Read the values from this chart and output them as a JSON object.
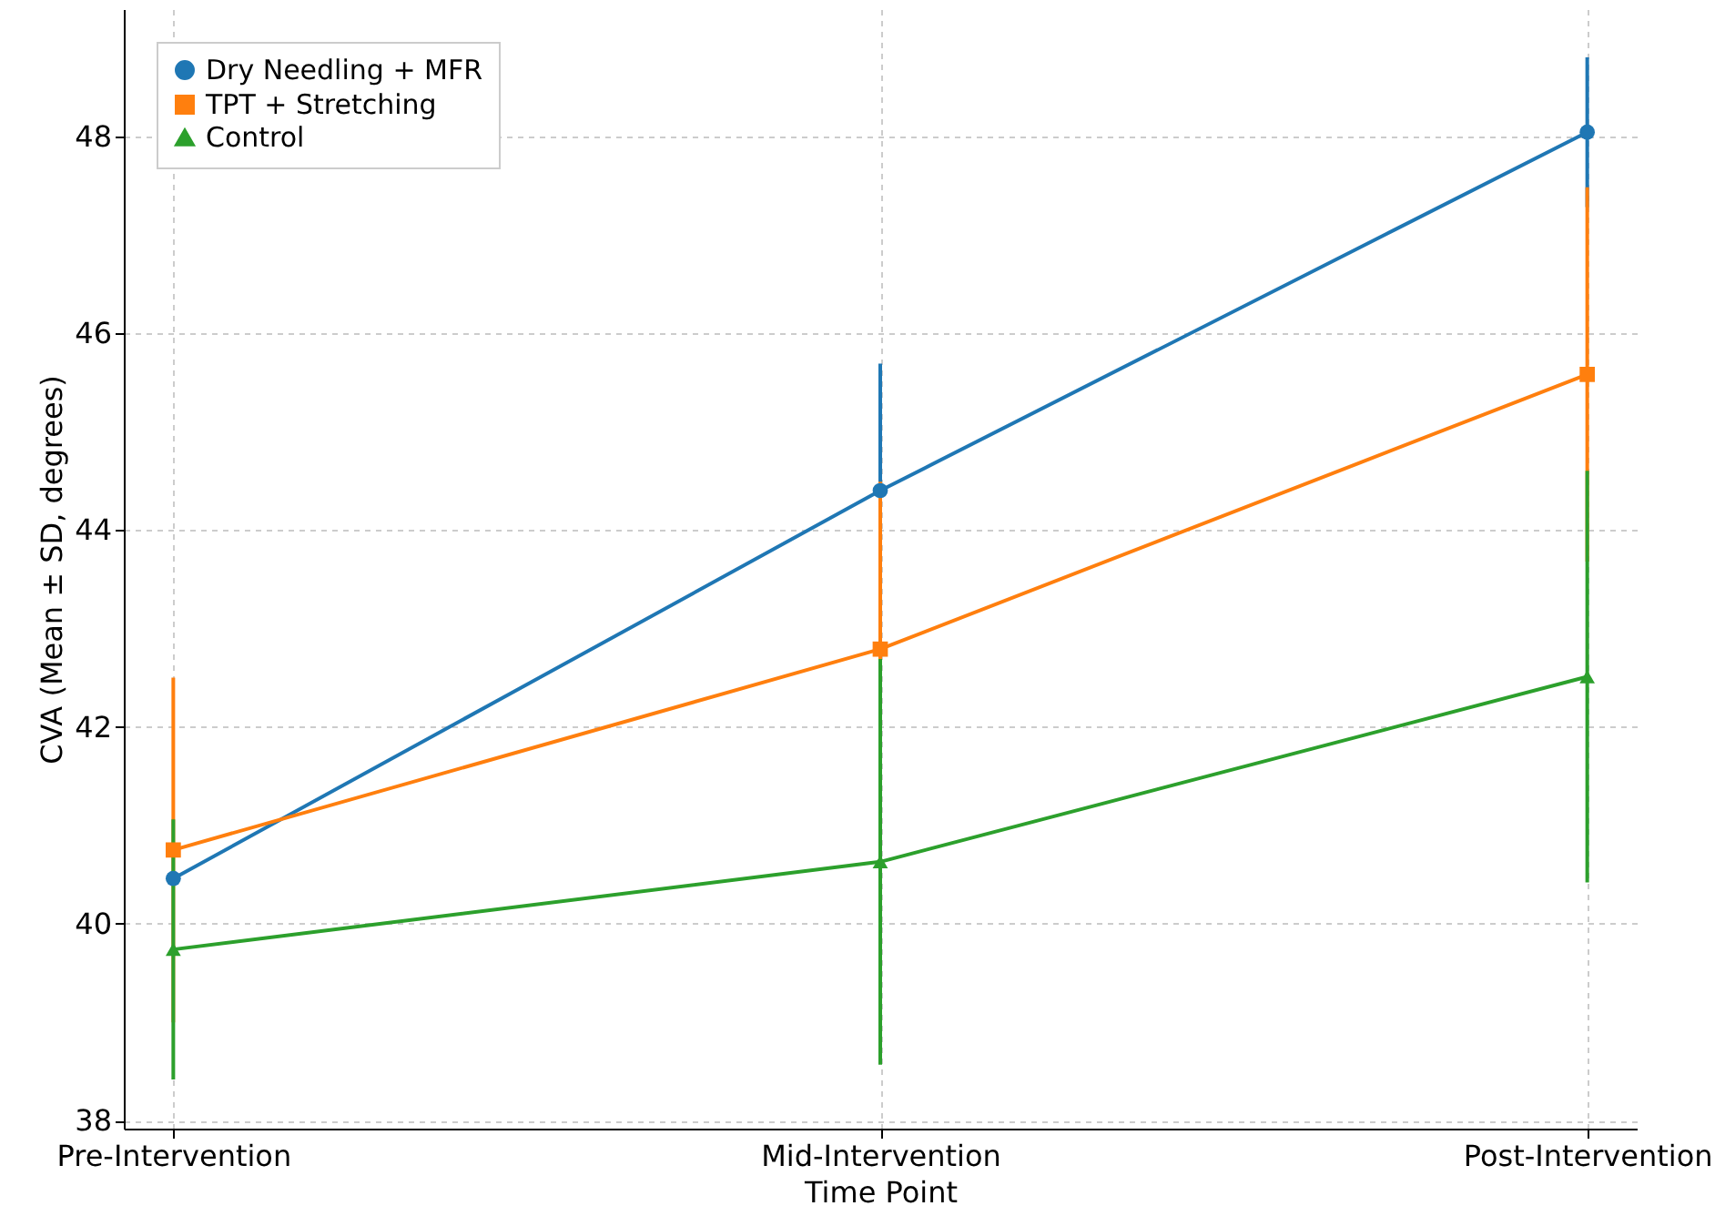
{
  "chart_data": {
    "type": "line",
    "xlabel": "Time Point",
    "ylabel": "CVA (Mean ± SD, degrees)",
    "categories": [
      "Pre-Intervention",
      "Mid-Intervention",
      "Post-Intervention"
    ],
    "series": [
      {
        "name": "Dry Needling + MFR",
        "color": "#1f77b4",
        "marker": "circle",
        "values": [
          40.46,
          44.4,
          48.04
        ],
        "errors": [
          null,
          1.29,
          0.76
        ]
      },
      {
        "name": "TPT + Stretching",
        "color": "#ff7f0e",
        "marker": "square",
        "values": [
          40.75,
          42.79,
          45.58
        ],
        "errors": [
          1.75,
          1.7,
          1.9
        ]
      },
      {
        "name": "Control",
        "color": "#2ca02c",
        "marker": "triangle",
        "values": [
          39.74,
          40.63,
          42.51
        ],
        "errors": [
          1.32,
          2.06,
          2.09
        ]
      }
    ],
    "ylim": [
      37.92,
      49.29
    ],
    "yticks": [
      38,
      40,
      42,
      44,
      46,
      48
    ],
    "grid": true,
    "legend": "top left",
    "line_style": "solid"
  }
}
